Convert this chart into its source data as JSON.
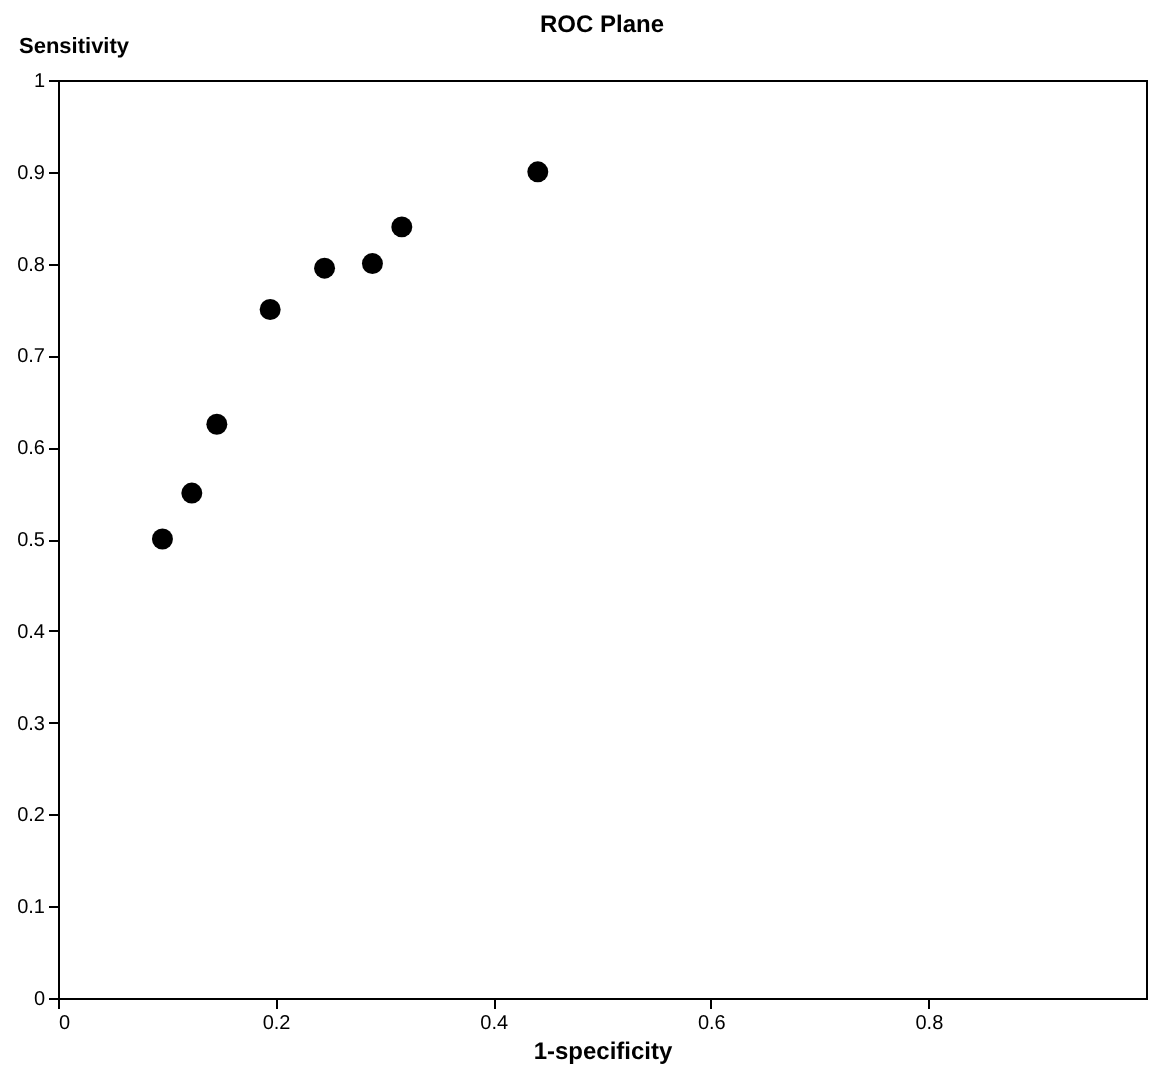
{
  "chart_data": {
    "type": "scatter",
    "title": "ROC Plane",
    "xlabel": "1-specificity",
    "ylabel": "Sensitivity",
    "x": [
      0.096,
      0.123,
      0.146,
      0.195,
      0.245,
      0.289,
      0.316,
      0.441
    ],
    "series": [
      {
        "color": "#000000",
        "values": [
          0.5,
          0.55,
          0.625,
          0.75,
          0.795,
          0.8,
          0.84,
          0.9
        ]
      }
    ],
    "xlim": [
      0,
      1
    ],
    "ylim": [
      0,
      1
    ],
    "xticks": [
      0,
      0.2,
      0.4,
      0.6,
      0.8
    ],
    "yticks": [
      0,
      0.1,
      0.2,
      0.3,
      0.4,
      0.5,
      0.6,
      0.7,
      0.8,
      0.9,
      1
    ],
    "grid": false,
    "marker": "circle"
  }
}
